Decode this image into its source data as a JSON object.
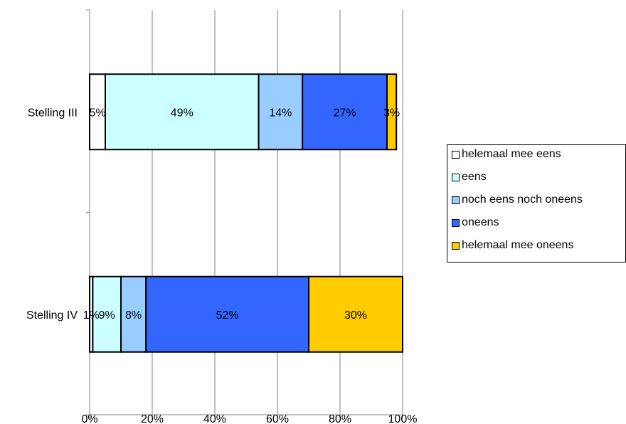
{
  "chart_data": {
    "type": "bar",
    "orientation": "horizontal",
    "stacked": true,
    "percent_stacked": true,
    "categories": [
      "Stelling III",
      "Stelling IV"
    ],
    "series": [
      {
        "name": "helemaal mee eens",
        "color": "#ffffff",
        "values": [
          5,
          1
        ],
        "labels": [
          "5%",
          "1%"
        ]
      },
      {
        "name": "eens",
        "color": "#ccffff",
        "values": [
          49,
          9
        ],
        "labels": [
          "49%",
          "9%"
        ]
      },
      {
        "name": "noch eens noch oneens",
        "color": "#99ccff",
        "values": [
          14,
          8
        ],
        "labels": [
          "14%",
          "8%"
        ]
      },
      {
        "name": "oneens",
        "color": "#3366ff",
        "values": [
          27,
          52
        ],
        "labels": [
          "27%",
          "52%"
        ]
      },
      {
        "name": "helemaal mee oneens",
        "color": "#ffcc00",
        "values": [
          3,
          30
        ],
        "labels": [
          "3%",
          "30%"
        ]
      }
    ],
    "x_ticks": [
      "0%",
      "20%",
      "40%",
      "60%",
      "80%",
      "100%"
    ],
    "xlim": [
      0,
      100
    ],
    "grid": true,
    "legend_position": "right"
  }
}
